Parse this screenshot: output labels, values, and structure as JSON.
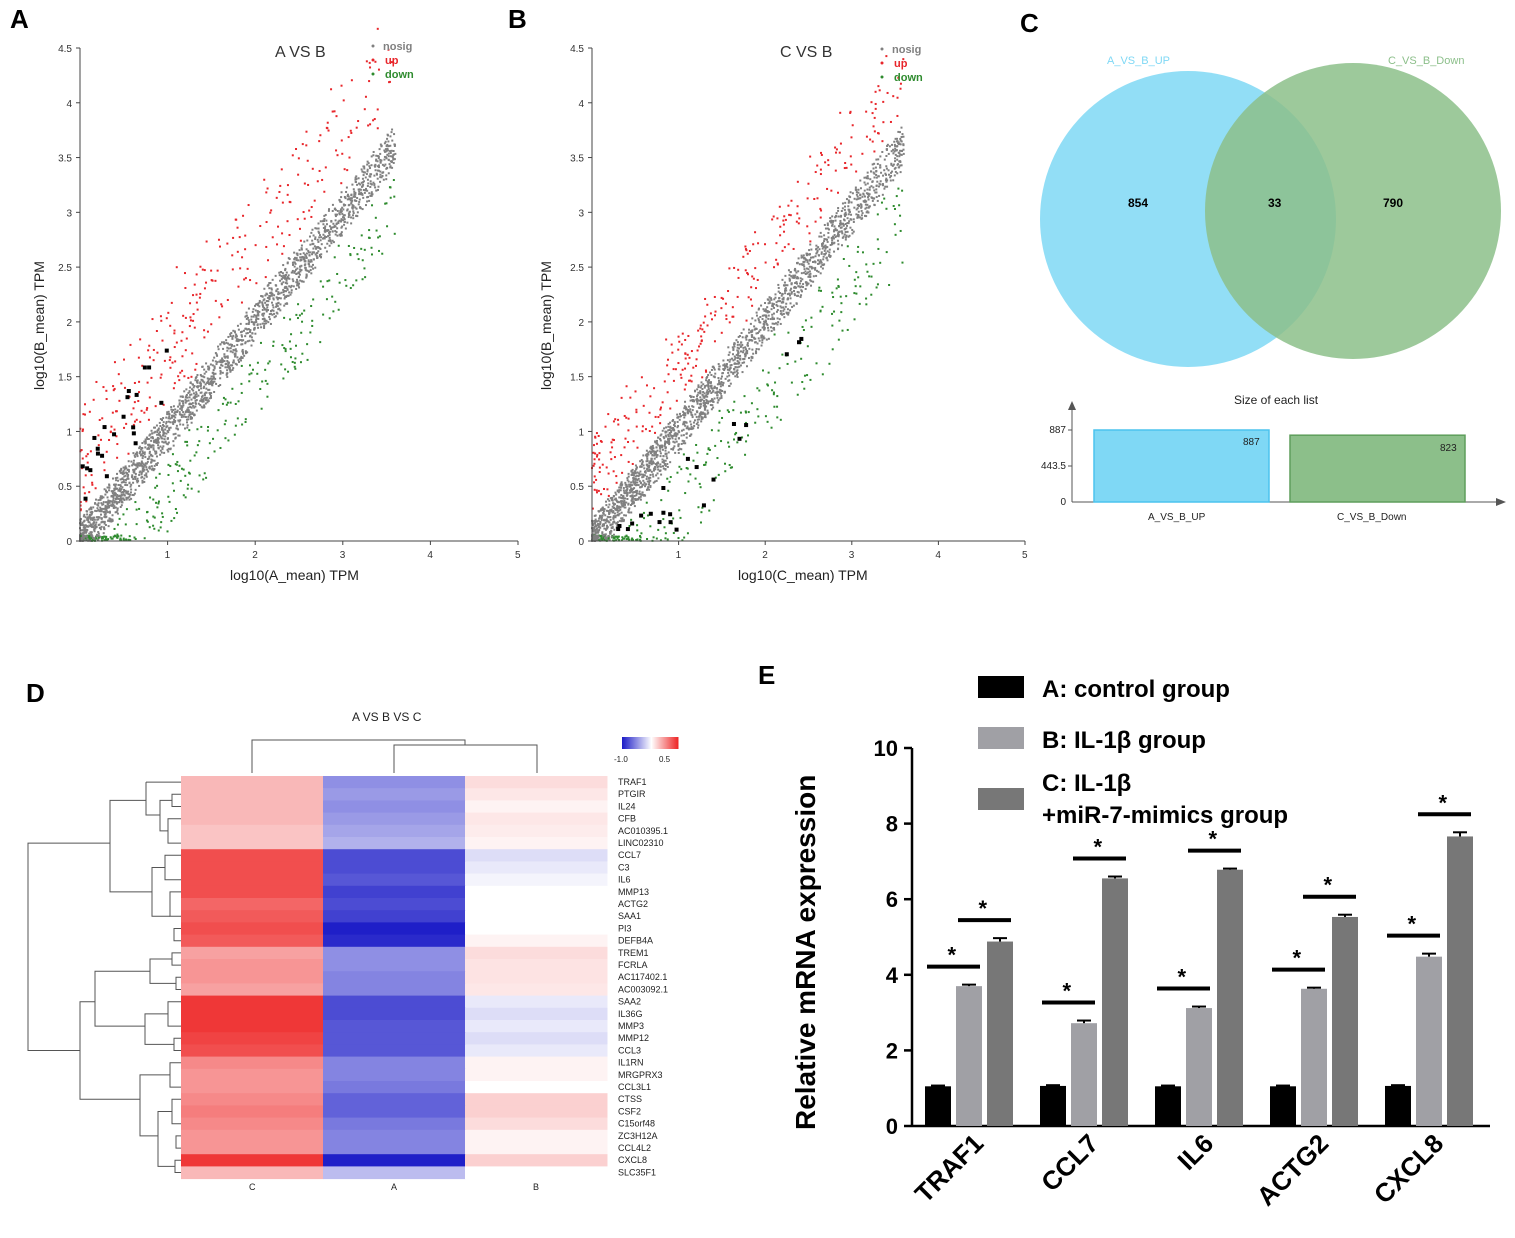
{
  "colors": {
    "nosig": "#808080",
    "up": "#e8262b",
    "down": "#2e8b2e",
    "highlight": "#000000",
    "venn_left": "#7fd8f5",
    "venn_right": "#8cbf8a",
    "heat_low": "#1f1fc8",
    "heat_mid": "#ffffff",
    "heat_high": "#ee2b2b",
    "barA": "#000000",
    "barB": "#a0a0a5",
    "barC": "#777777"
  },
  "panels": {
    "A": {
      "letter": "A",
      "title": "A VS B",
      "xlabel": "log10(A_mean) TPM",
      "ylabel": "log10(B_mean) TPM",
      "xticks": [
        "1",
        "2",
        "3",
        "4",
        "5"
      ],
      "yticks": [
        "0",
        "0.5",
        "1",
        "1.5",
        "2",
        "2.5",
        "3",
        "3.5",
        "4",
        "4.5"
      ],
      "legend": [
        "nosig",
        "up",
        "down"
      ]
    },
    "B": {
      "letter": "B",
      "title": "C VS B",
      "xlabel": "log10(C_mean) TPM",
      "ylabel": "log10(B_mean) TPM",
      "xticks": [
        "1",
        "2",
        "3",
        "4",
        "5"
      ],
      "yticks": [
        "0",
        "0.5",
        "1",
        "1.5",
        "2",
        "2.5",
        "3",
        "3.5",
        "4",
        "4.5"
      ],
      "legend": [
        "nosig",
        "up",
        "down"
      ]
    },
    "C": {
      "letter": "C",
      "left_label": "A_VS_B_UP",
      "right_label": "C_VS_B_Down",
      "left_only": "854",
      "overlap": "33",
      "right_only": "790",
      "size_title": "Size of each list",
      "size_yticks": [
        "887",
        "443.5",
        "0"
      ],
      "size_values": [
        "887",
        "823"
      ],
      "size_categories": [
        "A_VS_B_UP",
        "C_VS_B_Down"
      ]
    },
    "D": {
      "letter": "D",
      "title": "A VS B VS C",
      "scale_labels": [
        "-1.0",
        "0.5"
      ],
      "columns": [
        "C",
        "A",
        "B"
      ]
    },
    "E": {
      "letter": "E",
      "ylabel": "Relative mRNA expression",
      "yticks": [
        "0",
        "2",
        "4",
        "6",
        "8",
        "10"
      ],
      "legend": [
        "A: control group",
        "B: IL-1β group",
        "C: IL-1β",
        "+miR-7-mimics group"
      ],
      "star": "*"
    }
  },
  "chart_data": [
    {
      "type": "scatter",
      "title": "A VS B",
      "xlabel": "log10(A_mean) TPM",
      "ylabel": "log10(B_mean) TPM",
      "xlim": [
        0,
        5
      ],
      "ylim": [
        0,
        4.5
      ],
      "series": [
        {
          "name": "nosig"
        },
        {
          "name": "up"
        },
        {
          "name": "down"
        }
      ]
    },
    {
      "type": "scatter",
      "title": "C VS B",
      "xlabel": "log10(C_mean) TPM",
      "ylabel": "log10(B_mean) TPM",
      "xlim": [
        0,
        5
      ],
      "ylim": [
        0,
        4.5
      ],
      "series": [
        {
          "name": "nosig"
        },
        {
          "name": "up"
        },
        {
          "name": "down"
        }
      ]
    },
    {
      "type": "bar",
      "title": "Size of each list",
      "categories": [
        "A_VS_B_UP",
        "C_VS_B_Down"
      ],
      "values": [
        887,
        823
      ],
      "ylim": [
        0,
        887
      ]
    },
    {
      "type": "heatmap",
      "title": "A VS B VS C",
      "columns": [
        "C",
        "A",
        "B"
      ],
      "rows": [
        "TRAF1",
        "PTGIR",
        "IL24",
        "CFB",
        "AC010395.1",
        "LINC02310",
        "CCL7",
        "C3",
        "IL6",
        "MMP13",
        "ACTG2",
        "SAA1",
        "PI3",
        "DEFB4A",
        "TREM1",
        "FCRLA",
        "AC117402.1",
        "AC003092.1",
        "SAA2",
        "IL36G",
        "MMP3",
        "MMP12",
        "CCL3",
        "IL1RN",
        "MRGPRX3",
        "CCL3L1",
        "CTSS",
        "CSF2",
        "C15orf48",
        "ZC3H12A",
        "CCL4L2",
        "CXCL8",
        "SLC35F1"
      ],
      "values": [
        [
          0.3,
          -0.5,
          0.15
        ],
        [
          0.3,
          -0.45,
          0.1
        ],
        [
          0.3,
          -0.5,
          0.05
        ],
        [
          0.3,
          -0.45,
          0.1
        ],
        [
          0.25,
          -0.4,
          0.08
        ],
        [
          0.25,
          -0.35,
          0.05
        ],
        [
          0.75,
          -0.8,
          -0.15
        ],
        [
          0.75,
          -0.8,
          -0.1
        ],
        [
          0.75,
          -0.75,
          -0.05
        ],
        [
          0.75,
          -0.85,
          0.0
        ],
        [
          0.65,
          -0.8,
          0.0
        ],
        [
          0.7,
          -0.85,
          0.0
        ],
        [
          0.75,
          -1.0,
          0.0
        ],
        [
          0.7,
          -0.95,
          0.05
        ],
        [
          0.4,
          -0.5,
          0.15
        ],
        [
          0.45,
          -0.5,
          0.12
        ],
        [
          0.45,
          -0.55,
          0.12
        ],
        [
          0.4,
          -0.55,
          0.1
        ],
        [
          0.85,
          -0.8,
          -0.1
        ],
        [
          0.85,
          -0.8,
          -0.15
        ],
        [
          0.85,
          -0.75,
          -0.1
        ],
        [
          0.8,
          -0.75,
          -0.15
        ],
        [
          0.75,
          -0.75,
          -0.1
        ],
        [
          0.5,
          -0.55,
          0.05
        ],
        [
          0.45,
          -0.55,
          0.05
        ],
        [
          0.45,
          -0.6,
          0.0
        ],
        [
          0.5,
          -0.7,
          0.2
        ],
        [
          0.55,
          -0.7,
          0.2
        ],
        [
          0.5,
          -0.6,
          0.15
        ],
        [
          0.45,
          -0.55,
          0.05
        ],
        [
          0.45,
          -0.55,
          0.05
        ],
        [
          0.85,
          -1.1,
          0.2
        ],
        [
          0.3,
          -0.3,
          0.0
        ]
      ],
      "color_scale": [
        -1.0,
        0.5
      ]
    },
    {
      "type": "bar",
      "title": "",
      "categories": [
        "TRAF1",
        "CCL7",
        "IL6",
        "ACTG2",
        "CXCL8"
      ],
      "ylabel": "Relative mRNA expression",
      "ylim": [
        0,
        10
      ],
      "series": [
        {
          "name": "A: control group",
          "values": [
            1.05,
            1.06,
            1.05,
            1.05,
            1.06
          ],
          "errors": [
            0.02,
            0.02,
            0.02,
            0.02,
            0.02
          ]
        },
        {
          "name": "B: IL-1β group",
          "values": [
            3.7,
            2.72,
            3.12,
            3.63,
            4.48
          ],
          "errors": [
            0.04,
            0.07,
            0.04,
            0.03,
            0.08
          ]
        },
        {
          "name": "C: IL-1β +miR-7-mimics group",
          "values": [
            4.88,
            6.55,
            6.78,
            5.53,
            7.66
          ],
          "errors": [
            0.09,
            0.05,
            0.03,
            0.06,
            0.11
          ]
        }
      ],
      "significance": "*"
    }
  ]
}
